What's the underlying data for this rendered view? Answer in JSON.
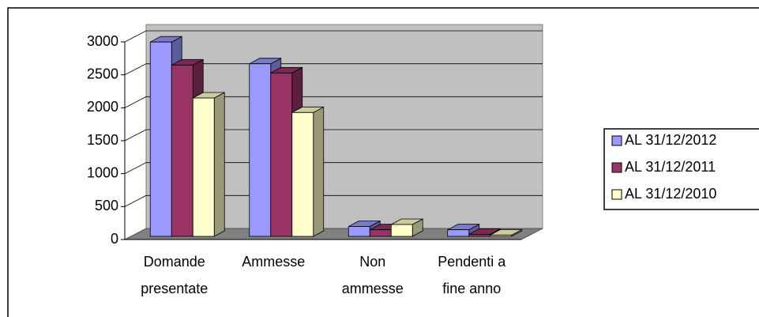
{
  "chart_data": {
    "type": "bar3d",
    "categories": [
      "Domande presentate",
      "Ammesse",
      "Non ammesse",
      "Pendenti a fine anno"
    ],
    "series": [
      {
        "name": "AL 31/12/2012",
        "color": "#9999ff",
        "values": [
          2950,
          2620,
          150,
          100
        ]
      },
      {
        "name": "AL 31/12/2011",
        "color": "#993366",
        "values": [
          2600,
          2480,
          100,
          30
        ]
      },
      {
        "name": "AL 31/12/2010",
        "color": "#ffffcc",
        "values": [
          2100,
          1880,
          180,
          20
        ]
      }
    ],
    "ylim": [
      0,
      3000
    ],
    "yticks": [
      0,
      500,
      1000,
      1500,
      2000,
      2500,
      3000
    ],
    "grid": true,
    "legend": "right"
  }
}
